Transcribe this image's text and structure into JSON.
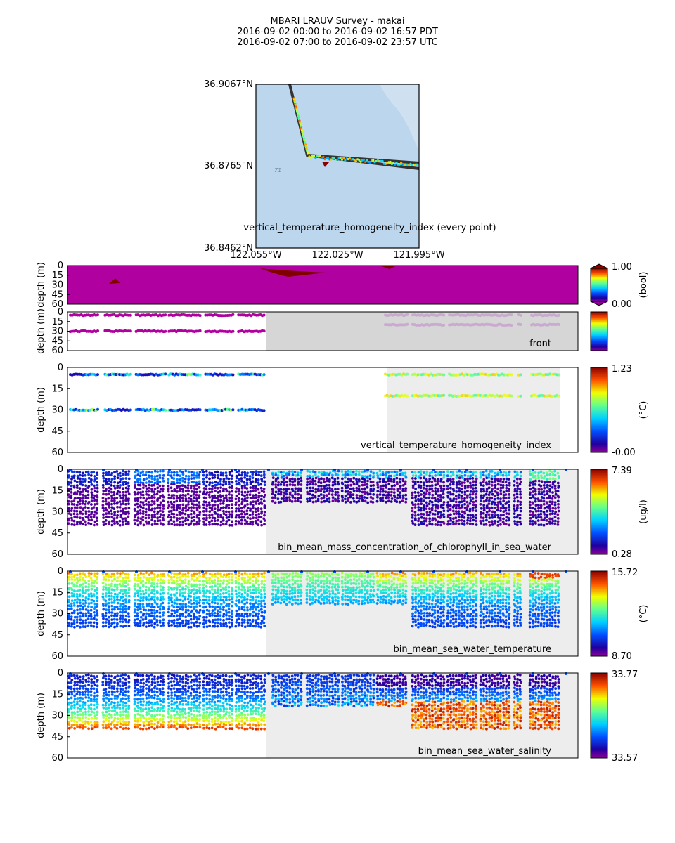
{
  "title": {
    "line1": "MBARI LRAUV Survey - makai",
    "line2": "2016-09-02 00:00  to  2016-09-02 16:57 PDT",
    "line3": "2016-09-02 07:00  to  2016-09-02 23:57 UTC"
  },
  "colors": {
    "map_water": "#bcd6ee",
    "map_land": "#cde0f0",
    "panel_shade": "#ededed",
    "panel_shade_dark": "#d6d6d6",
    "track": "#333333",
    "front_light": "#c9a6cf",
    "magenta": "#b000a0",
    "dark_red": "#800000"
  },
  "map": {
    "lat_labels": [
      "36.9067°N",
      "36.8765°N",
      "36.8462°N"
    ],
    "lon_labels": [
      "122.055°W",
      "122.025°W",
      "121.995°W"
    ],
    "caption": "vertical_temperature_homogeneity_index (every point)",
    "contour_label": "71"
  },
  "chart_data": [
    {
      "type": "scatter",
      "name": "vertical_temperature_homogeneity_index (every point)",
      "subtype": "filled-contour",
      "ylabel": "depth (m)",
      "yticks": [
        "0",
        "15",
        "30",
        "45",
        "60"
      ],
      "ylim": [
        0,
        60
      ],
      "colorbar": {
        "top": "1.00",
        "bottom": "0.00",
        "unit": "(bool)"
      },
      "note": "Mostly 0 (magenta) with small patches of 1 (dark red)"
    },
    {
      "type": "scatter",
      "name": "front",
      "label": "front",
      "ylabel": "depth (m)",
      "yticks": [
        "0",
        "15",
        "30",
        "45",
        "60"
      ],
      "ylim": [
        0,
        60
      ],
      "depths": [
        5,
        30
      ],
      "right_depths": [
        5,
        20
      ],
      "colorbar": {
        "top": "",
        "bottom": "",
        "unit": ""
      }
    },
    {
      "type": "scatter",
      "name": "vertical_temperature_homogeneity_index",
      "label": "vertical_temperature_homogeneity_index",
      "ylabel": "depth (m)",
      "yticks": [
        "0",
        "15",
        "30",
        "45",
        "60"
      ],
      "ylim": [
        0,
        60
      ],
      "depths": [
        5,
        30
      ],
      "right_depths": [
        5,
        20
      ],
      "colorbar": {
        "top": "1.23",
        "bottom": "-0.00",
        "unit": "(°C)"
      }
    },
    {
      "type": "scatter",
      "name": "bin_mean_mass_concentration_of_chlorophyll_in_sea_water",
      "label": "bin_mean_mass_concentration_of_chlorophyll_in_sea_water",
      "ylabel": "depth (m)",
      "yticks": [
        "0",
        "15",
        "30",
        "45",
        "60"
      ],
      "ylim": [
        0,
        60
      ],
      "max_depth_left": 40,
      "max_depth_mid": 25,
      "max_depth_right": 40,
      "colorbar": {
        "top": "7.39",
        "bottom": "0.28",
        "unit": "(ug/l)"
      }
    },
    {
      "type": "scatter",
      "name": "bin_mean_sea_water_temperature",
      "label": "bin_mean_sea_water_temperature",
      "ylabel": "depth (m)",
      "yticks": [
        "0",
        "15",
        "30",
        "45",
        "60"
      ],
      "ylim": [
        0,
        60
      ],
      "max_depth_left": 40,
      "max_depth_mid": 25,
      "max_depth_right": 40,
      "colorbar": {
        "top": "15.72",
        "bottom": "8.70",
        "unit": "(°C)"
      }
    },
    {
      "type": "scatter",
      "name": "bin_mean_sea_water_salinity",
      "label": "bin_mean_sea_water_salinity",
      "ylabel": "depth (m)",
      "yticks": [
        "0",
        "15",
        "30",
        "45",
        "60"
      ],
      "ylim": [
        0,
        60
      ],
      "max_depth_left": 40,
      "max_depth_mid": 25,
      "max_depth_right": 40,
      "colorbar": {
        "top": "33.77",
        "bottom": "33.57",
        "unit": ""
      }
    }
  ]
}
